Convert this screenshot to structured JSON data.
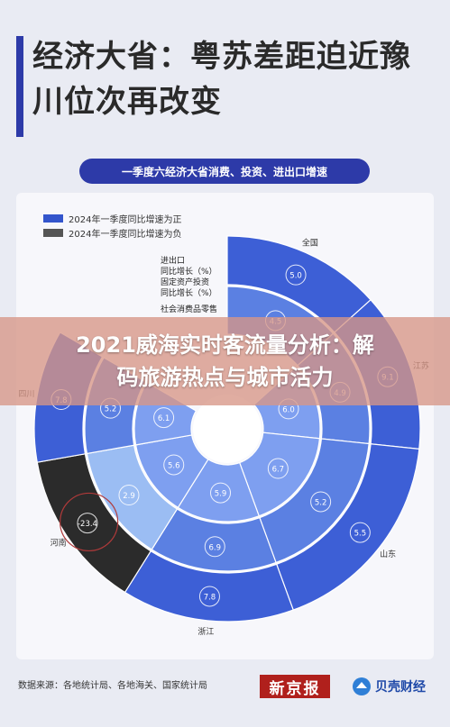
{
  "title": "经济大省：粤苏差距迫近豫川位次再改变",
  "subtitle": "一季度六经济大省消费、投资、进出口增速",
  "overlay_banner": {
    "line1": "2021威海实时客流量分析：解",
    "line2": "码旅游热点与城市活力"
  },
  "legend": [
    {
      "label": "2024年一季度同比增速为正",
      "color": "#3355cc"
    },
    {
      "label": "2024年一季度同比增速为负",
      "color": "#555555"
    }
  ],
  "footer": {
    "source": "数据来源：各地统计局、各地海关、国家统计局",
    "logo1": "新京报",
    "logo2": "贝壳财经"
  },
  "chart_data": {
    "type": "radial-bar",
    "rings": [
      {
        "name": "进出口同比增长（%）",
        "label_line1": "进出口",
        "label_line2": "同比增长（%）"
      },
      {
        "name": "固定资产投资同比增长（%）",
        "label_line1": "固定资产投资",
        "label_line2": "同比增长（%）"
      },
      {
        "name": "社会消费品零售总额同比增长（%）",
        "label_line1": "社会消费品零售",
        "label_line2": ""
      }
    ],
    "regions": [
      "全国",
      "江苏",
      "山东",
      "浙江",
      "河南",
      "四川"
    ],
    "values": {
      "全国": [
        5.0,
        4.5,
        null
      ],
      "江苏": [
        9.1,
        4.9,
        6.0
      ],
      "山东": [
        5.5,
        5.2,
        6.7
      ],
      "浙江": [
        7.8,
        6.9,
        5.9
      ],
      "河南": [
        -23.4,
        2.9,
        5.6
      ],
      "四川": [
        7.8,
        5.2,
        6.1
      ]
    },
    "colors": {
      "positive_outer": "#3d5fd6",
      "positive_mid": "#5b80e2",
      "positive_inner": "#7e9ff0",
      "negative": "#2b2b2b",
      "light": "#9bbdf3",
      "highlight": "#1d2fd0"
    }
  }
}
